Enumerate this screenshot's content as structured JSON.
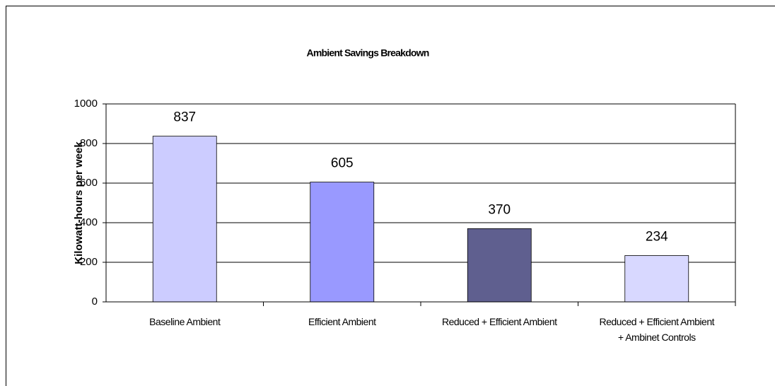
{
  "chart_data": {
    "type": "bar",
    "title": "Ambient Savings Breakdown",
    "y_label": "Kilowatt-hours per week",
    "categories": [
      "Baseline Ambient",
      "Efficient Ambient",
      "Reduced + Efficient Ambient",
      "Reduced + Efficient Ambient + Ambinet Controls"
    ],
    "values": [
      837,
      605,
      370,
      234
    ],
    "colors": [
      "#ccccff",
      "#9999ff",
      "#5f5f8f",
      "#d8d8ff"
    ],
    "ylim": [
      0,
      1000
    ],
    "yticks": [
      0,
      200,
      400,
      600,
      800,
      1000
    ],
    "grid": true
  }
}
